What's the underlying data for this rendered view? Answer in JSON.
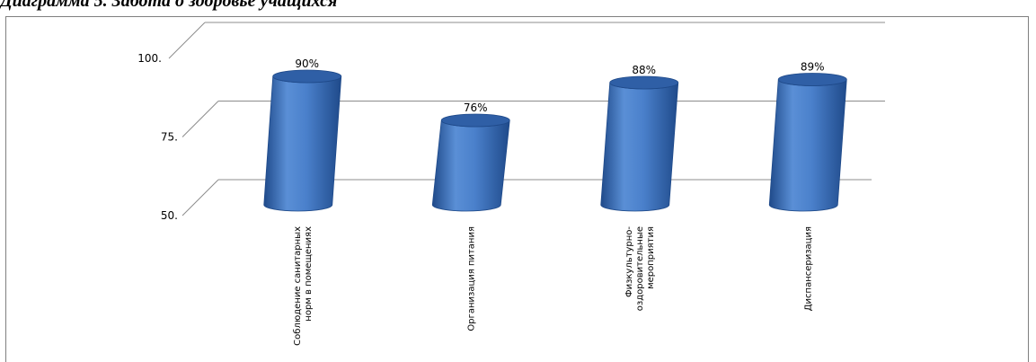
{
  "title": {
    "lead": "Диаграмма 5. ",
    "bold": "Забота о здоровье учащихся"
  },
  "chart_data": {
    "type": "bar",
    "style": "3d-cylinder",
    "categories": [
      [
        "Соблюдение санитарных",
        "норм в помещениях"
      ],
      [
        "Организация питания"
      ],
      [
        "Физкультурно-",
        "оздоровительные",
        "мероприятия"
      ],
      [
        "Диспансеризация"
      ]
    ],
    "values": [
      90,
      76,
      88,
      89
    ],
    "data_labels": [
      "90%",
      "76%",
      "88%",
      "89%"
    ],
    "y_ticks": [
      50,
      75,
      100
    ],
    "y_tick_labels": [
      "50.",
      "75.",
      "100."
    ],
    "ylim": [
      50,
      100
    ],
    "grid": true,
    "legend": "none",
    "colors": {
      "bar_light": "#5a8fd6",
      "bar_mid": "#3f74c0",
      "bar_dark": "#1f4a8a",
      "bar_top": "#2f5fa6",
      "grid": "#8c8c8c"
    }
  }
}
